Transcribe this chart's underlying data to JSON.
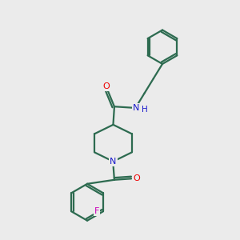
{
  "background_color": "#ebebeb",
  "bond_color": "#2d6b50",
  "bond_width": 1.6,
  "atom_colors": {
    "O": "#ee0000",
    "N": "#1a1acc",
    "F": "#cc00bb",
    "H": "#1a1acc"
  }
}
